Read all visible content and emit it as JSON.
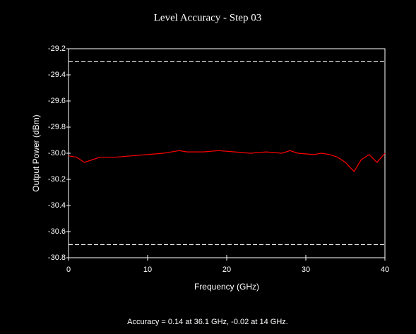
{
  "chart_data": {
    "type": "line",
    "title": "Level Accuracy - Step 03",
    "x_label": "Frequency (GHz)",
    "y_label": "Output Power (dBm)",
    "annotation": "Accuracy = 0.14 at 36.1 GHz, -0.02 at 14 GHz.",
    "x": [
      0,
      1,
      2,
      3,
      4,
      6,
      8,
      10,
      12,
      14,
      15,
      17,
      19,
      21,
      23,
      25,
      27,
      28,
      29,
      31,
      32,
      33,
      34,
      35,
      36.1,
      37,
      38,
      39,
      40
    ],
    "series": [
      {
        "color": "#ff0000",
        "values": [
          -30.02,
          -30.03,
          -30.07,
          -30.05,
          -30.03,
          -30.03,
          -30.02,
          -30.01,
          -30.0,
          -29.98,
          -29.99,
          -29.99,
          -29.98,
          -29.99,
          -30.0,
          -29.99,
          -30.0,
          -29.98,
          -30.0,
          -30.01,
          -30.0,
          -30.01,
          -30.03,
          -30.07,
          -30.14,
          -30.05,
          -30.01,
          -30.07,
          -30.0
        ]
      }
    ],
    "limit_lines": [
      -29.3,
      -30.7
    ],
    "limit_color": "#ffffff",
    "xlim": [
      0,
      40
    ],
    "xticks": [
      0,
      10,
      20,
      30,
      40
    ],
    "ylim": [
      -30.8,
      -29.2
    ],
    "yticks": [
      -29.2,
      -29.4,
      -29.6,
      -29.8,
      {
        "value": -30.0,
        "label": "-30.0"
      },
      -30.2,
      -30.4,
      -30.6,
      -30.8
    ]
  }
}
